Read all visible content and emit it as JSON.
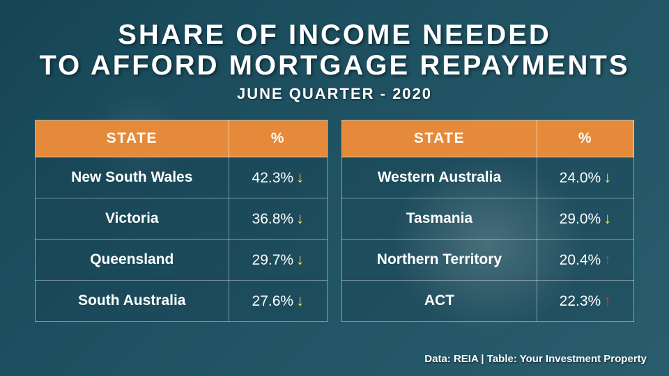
{
  "title_line1": "SHARE OF INCOME NEEDED",
  "title_line2": "TO AFFORD MORTGAGE REPAYMENTS",
  "subtitle": "JUNE QUARTER - 2020",
  "header_state": "STATE",
  "header_pct": "%",
  "left_rows": [
    {
      "state": "New South Wales",
      "pct": "42.3%",
      "dir": "down"
    },
    {
      "state": "Victoria",
      "pct": "36.8%",
      "dir": "down"
    },
    {
      "state": "Queensland",
      "pct": "29.7%",
      "dir": "down"
    },
    {
      "state": "South Australia",
      "pct": "27.6%",
      "dir": "down"
    }
  ],
  "right_rows": [
    {
      "state": "Western Australia",
      "pct": "24.0%",
      "dir": "down"
    },
    {
      "state": "Tasmania",
      "pct": "29.0%",
      "dir": "down"
    },
    {
      "state": "Northern Territory",
      "pct": "20.4%",
      "dir": "up"
    },
    {
      "state": "ACT",
      "pct": "22.3%",
      "dir": "up"
    }
  ],
  "footer": "Data: REIA | Table: Your Investment Property",
  "colors": {
    "header_bg": "#e58a3a",
    "down_arrow": "#f5e94a",
    "up_arrow": "#d9362b",
    "text": "#ffffff",
    "border": "rgba(255,255,255,0.45)"
  },
  "arrows": {
    "down": "↓",
    "up": "↑"
  }
}
